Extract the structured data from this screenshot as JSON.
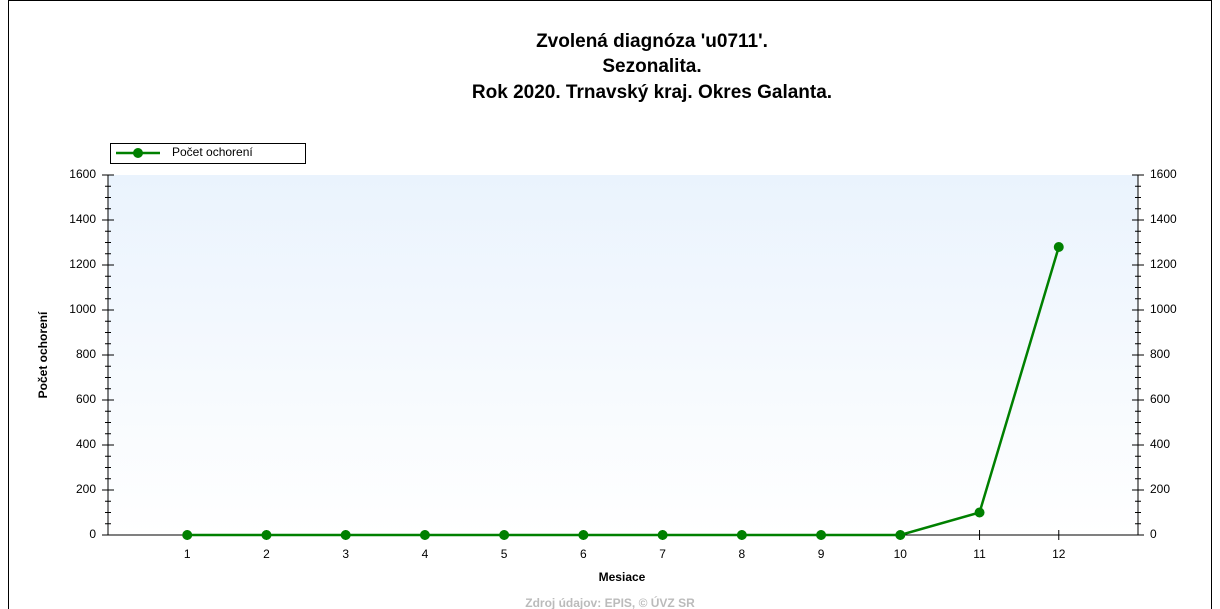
{
  "chart_data": {
    "type": "line",
    "title": [
      "Zvolená diagnóza 'u0711'.",
      "Sezonalita.",
      "Rok 2020. Trnavský kraj. Okres Galanta."
    ],
    "x_label": "Mesiace",
    "y_label": "Počet ochorení",
    "source": "Zdroj údajov: EPIS, © ÚVZ SR",
    "x": [
      1,
      2,
      3,
      4,
      5,
      6,
      7,
      8,
      9,
      10,
      11,
      12
    ],
    "xlim": [
      0,
      13
    ],
    "xticks": [
      1,
      2,
      3,
      4,
      5,
      6,
      7,
      8,
      9,
      10,
      11,
      12
    ],
    "series": [
      {
        "name": "Počet ochorení",
        "color": "#008000",
        "values": [
          0,
          0,
          0,
          0,
          0,
          0,
          0,
          0,
          0,
          0,
          100,
          1280
        ]
      }
    ],
    "ylim": [
      0,
      1600
    ],
    "yticks": [
      0,
      200,
      400,
      600,
      800,
      1000,
      1200,
      1400,
      1600
    ],
    "y2lim": [
      0,
      1600
    ],
    "y2ticks": [
      0,
      200,
      400,
      600,
      800,
      1000,
      1200,
      1400,
      1600
    ],
    "legend": "top-left"
  }
}
